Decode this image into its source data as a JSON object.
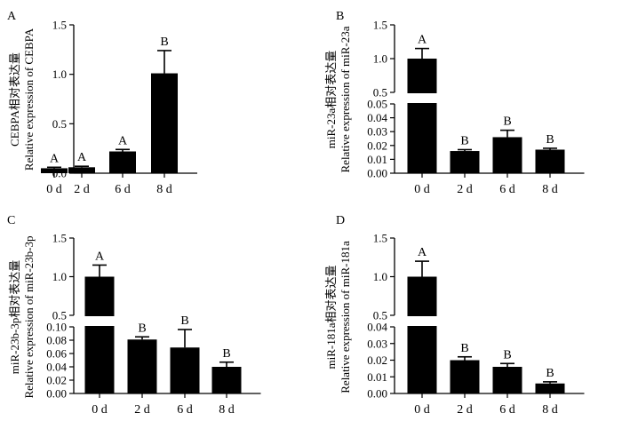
{
  "chart_data": [
    {
      "type": "bar",
      "panel": "A",
      "categories": [
        "0 d",
        "2 d",
        "6 d",
        "8 d"
      ],
      "values": [
        0.05,
        0.06,
        0.22,
        1.01
      ],
      "errors": [
        0.01,
        0.01,
        0.02,
        0.23
      ],
      "letters": [
        "A",
        "A",
        "A",
        "B"
      ],
      "ylabel_top": "CEBPA相对表达量",
      "ylabel_bottom": "Relative expression of CEBPA",
      "ylim": [
        0,
        1.5
      ],
      "ticks": [
        "0.0",
        "0.5",
        "1.0",
        "1.5"
      ],
      "broken": false
    },
    {
      "type": "bar",
      "panel": "B",
      "categories": [
        "0 d",
        "2 d",
        "6 d",
        "8 d"
      ],
      "values": [
        1.0,
        0.016,
        0.026,
        0.017
      ],
      "errors": [
        0.15,
        0.001,
        0.005,
        0.001
      ],
      "letters": [
        "A",
        "B",
        "B",
        "B"
      ],
      "ylabel_top": "miR-23a相对表达量",
      "ylabel_bottom": "Relative expression of miR-23a",
      "ylim_low": [
        0,
        0.05
      ],
      "ylim_high": [
        0.5,
        1.5
      ],
      "ticks_low": [
        "0.00",
        "0.01",
        "0.02",
        "0.03",
        "0.04",
        "0.05"
      ],
      "ticks_high": [
        "0.5",
        "1.0",
        "1.5"
      ],
      "broken": true
    },
    {
      "type": "bar",
      "panel": "C",
      "categories": [
        "0 d",
        "2 d",
        "6 d",
        "8 d"
      ],
      "values": [
        1.0,
        0.081,
        0.069,
        0.04
      ],
      "errors": [
        0.15,
        0.004,
        0.027,
        0.007
      ],
      "letters": [
        "A",
        "B",
        "B",
        "B"
      ],
      "ylabel_top": "miR-23b-3p相对表达量",
      "ylabel_bottom": "Relative expression of miR-23b-3p",
      "ylim_low": [
        0,
        0.1
      ],
      "ylim_high": [
        0.5,
        1.5
      ],
      "ticks_low": [
        "0.00",
        "0.02",
        "0.04",
        "0.06",
        "0.08",
        "0.10"
      ],
      "ticks_high": [
        "0.5",
        "1.0",
        "1.5"
      ],
      "broken": true
    },
    {
      "type": "bar",
      "panel": "D",
      "categories": [
        "0 d",
        "2 d",
        "6 d",
        "8 d"
      ],
      "values": [
        1.0,
        0.02,
        0.016,
        0.006
      ],
      "errors": [
        0.2,
        0.002,
        0.002,
        0.001
      ],
      "letters": [
        "A",
        "B",
        "B",
        "B"
      ],
      "ylabel_top": "miR-181a相对表达量",
      "ylabel_bottom": "Relative expression of miR-181a",
      "ylim_low": [
        0,
        0.04
      ],
      "ylim_high": [
        0.5,
        1.5
      ],
      "ticks_low": [
        "0.00",
        "0.01",
        "0.02",
        "0.03",
        "0.04"
      ],
      "ticks_high": [
        "0.5",
        "1.0",
        "1.5"
      ],
      "broken": true
    }
  ]
}
